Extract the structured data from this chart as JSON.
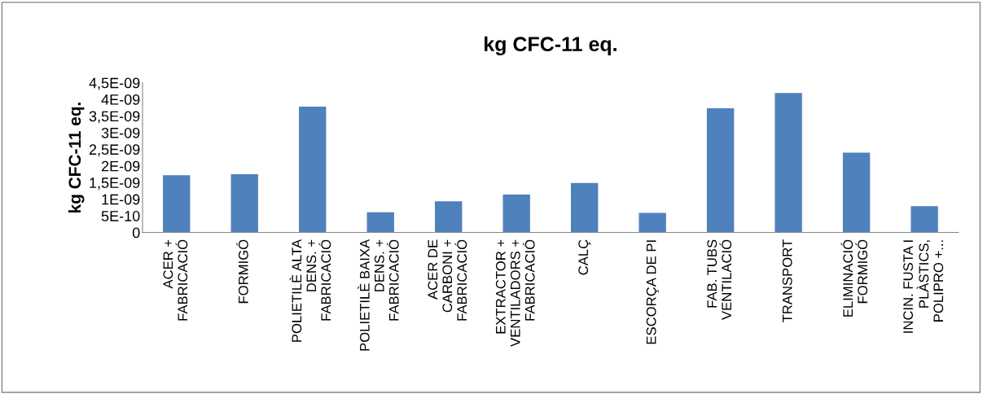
{
  "chart_data": {
    "type": "bar",
    "title": "kg CFC-11 eq.",
    "ylabel": "kg CFC-11 eq.",
    "categories": [
      "ACER +\nFABRICACIÓ",
      "FORMIGÓ",
      "POLIETILÈ ALTA\nDENS. +\nFABRICACIÓ",
      "POLIETILÈ BAIXA\nDENS. +\nFABRICACIÓ",
      "ACER DE\nCARBONI +\nFABRICACIÓ",
      "EXTRACTOR +\nVENTILADORS +\nFABRICACIÓ",
      "CALÇ",
      "ESCORÇA DE PI",
      "FAB. TUBS\nVENTILACIÓ",
      "TRANSPORT",
      "ELIMINACIÓ\nFORMIGÓ",
      "INCIN. FUSTA I\nPLÀSTICS,\nPOLIPRO +..."
    ],
    "values": [
      1.72e-09,
      1.75e-09,
      3.78e-09,
      6.1e-10,
      9.4e-10,
      1.14e-09,
      1.49e-09,
      5.9e-10,
      3.73e-09,
      4.19e-09,
      2.4e-09,
      7.9e-10
    ],
    "color": "#4f81bd",
    "ylim": [
      0,
      4.5e-09
    ],
    "yticks": [
      0,
      {
        "value": 5e-10,
        "label": "5E-10"
      },
      {
        "value": 1e-09,
        "label": "1E-09"
      },
      {
        "value": 1.5e-09,
        "label": "1,5E-09"
      },
      {
        "value": 2e-09,
        "label": "2E-09"
      },
      {
        "value": 2.5e-09,
        "label": "2,5E-09"
      },
      {
        "value": 3e-09,
        "label": "3E-09"
      },
      {
        "value": 3.5e-09,
        "label": "3,5E-09"
      },
      {
        "value": 4e-09,
        "label": "4E-09"
      },
      {
        "value": 4.5e-09,
        "label": "4,5E-09"
      }
    ],
    "grid": false,
    "legend": false
  }
}
